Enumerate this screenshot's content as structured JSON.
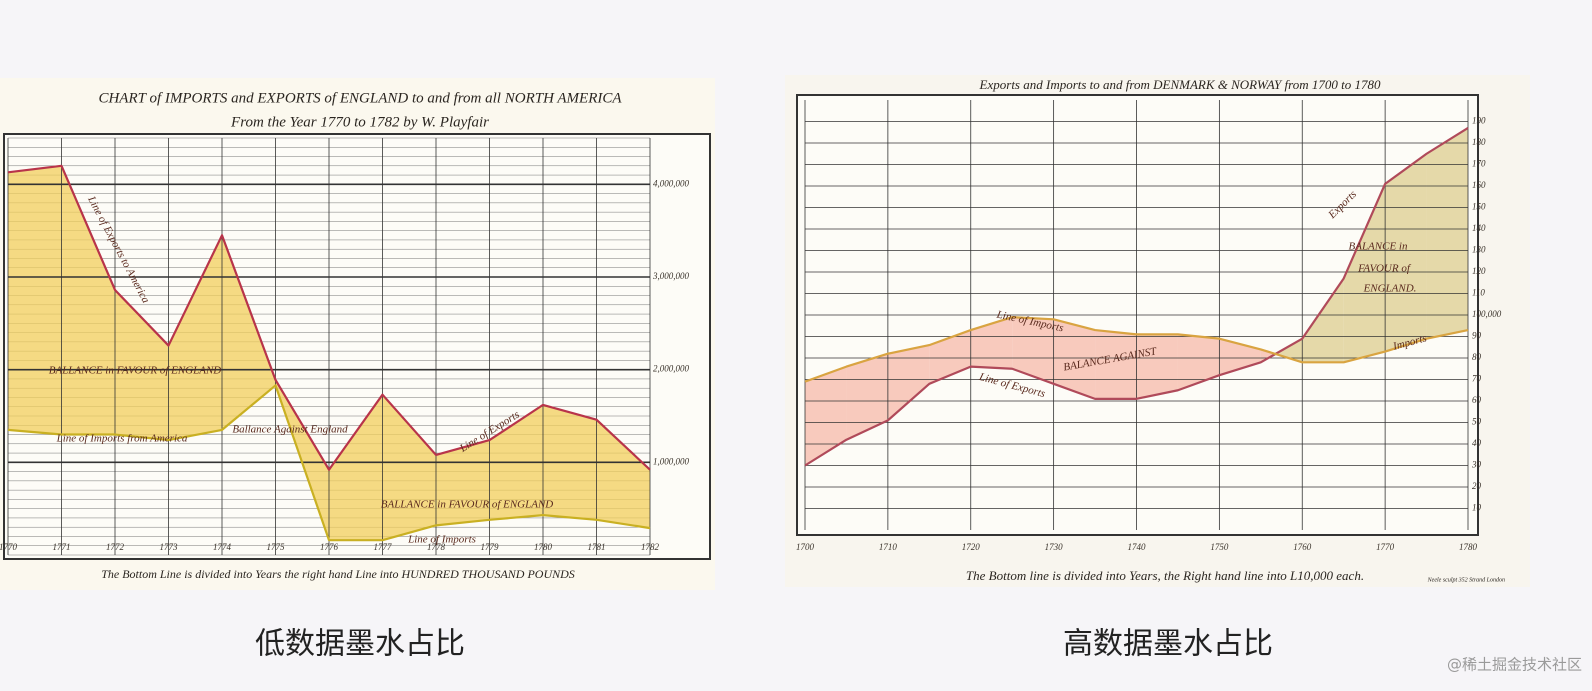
{
  "chart_data": [
    {
      "type": "line",
      "title": "CHART of IMPORTS and EXPORTS of ENGLAND to and from all NORTH AMERICA",
      "subtitle": "From the Year 1770 to 1782 by W. Playfair",
      "footer": "The Bottom Line is divided into Years the right hand Line into HUNDRED THOUSAND POUNDS",
      "x": [
        1770,
        1771,
        1772,
        1773,
        1774,
        1775,
        1776,
        1777,
        1778,
        1779,
        1780,
        1781,
        1782
      ],
      "xlim": [
        1770,
        1782
      ],
      "xticks": [
        1770,
        1771,
        1772,
        1773,
        1774,
        1775,
        1776,
        1777,
        1778,
        1779,
        1780,
        1781,
        1782
      ],
      "ylim": [
        0,
        45
      ],
      "yticks": [
        {
          "value": 10,
          "label": "1,000,000"
        },
        {
          "value": 20,
          "label": "2,000,000"
        },
        {
          "value": 30,
          "label": "3,000,000"
        },
        {
          "value": 40,
          "label": "4,000,000"
        }
      ],
      "series": [
        {
          "name": "Line of Exports",
          "color": "#b8344a",
          "values": [
            41.3,
            42,
            28.6,
            22.6,
            34.5,
            18.9,
            9.2,
            17.3,
            10.8,
            12.4,
            16.2,
            14.6,
            9.2
          ]
        },
        {
          "name": "Line of Imports",
          "color": "#c9b022",
          "values": [
            13.5,
            13,
            13,
            12.4,
            13.5,
            18.3,
            1.6,
            1.6,
            3.2,
            3.8,
            4.3,
            3.8,
            2.9
          ]
        }
      ],
      "balance_colors": {
        "favour": "#f2cf5c",
        "against": "#e7a3b8"
      },
      "background": "#fbf8ee",
      "annotations": [
        "Line of Exports to America",
        "BALLANCE in FAVOUR of ENGLAND",
        "Line of Imports from America",
        "Ballance Against England",
        "Line of Exports",
        "BALLANCE in FAVOUR of ENGLAND",
        "Line of Imports"
      ]
    },
    {
      "type": "line",
      "title": "Exports and Imports to and from DENMARK & NORWAY from 1700 to 1780",
      "footer": "The Bottom line is divided into Years, the Right hand line into L10,000 each.",
      "credit": "Neele sculpt 352 Strand London",
      "x": [
        1700,
        1705,
        1710,
        1715,
        1720,
        1725,
        1730,
        1735,
        1740,
        1745,
        1750,
        1755,
        1760,
        1765,
        1770,
        1775,
        1780
      ],
      "xlim": [
        1700,
        1780
      ],
      "xticks": [
        1700,
        1710,
        1720,
        1730,
        1740,
        1750,
        1760,
        1770,
        1780
      ],
      "ylim": [
        0,
        200
      ],
      "yticks": [
        10,
        20,
        30,
        40,
        50,
        60,
        70,
        80,
        90,
        {
          "value": 100,
          "label": "100,000"
        },
        110,
        120,
        130,
        140,
        150,
        160,
        170,
        180,
        190
      ],
      "series": [
        {
          "name": "Line of Exports",
          "color": "#b04a5a",
          "values": [
            30,
            42,
            51,
            68,
            76,
            75,
            68,
            61,
            61,
            65,
            72,
            78,
            89,
            117,
            161,
            175,
            187
          ]
        },
        {
          "name": "Line of Imports",
          "color": "#d9a441",
          "values": [
            69,
            76,
            82,
            86,
            93,
            99,
            98,
            93,
            91,
            91,
            89,
            84,
            78,
            78,
            83,
            89,
            93
          ]
        }
      ],
      "balance_colors": {
        "favour": "#dccd8f",
        "against": "#f6b9aa"
      },
      "background": "#f8f5ee",
      "annotations": [
        "Line of Imports",
        "BALANCE AGAINST",
        "Line of Exports",
        "BALANCE in",
        "FAVOUR of",
        "ENGLAND.",
        "Exports",
        "Imports"
      ]
    }
  ],
  "captions": [
    "低数据墨水占比",
    "高数据墨水占比"
  ],
  "watermark": "@稀土掘金技术社区"
}
